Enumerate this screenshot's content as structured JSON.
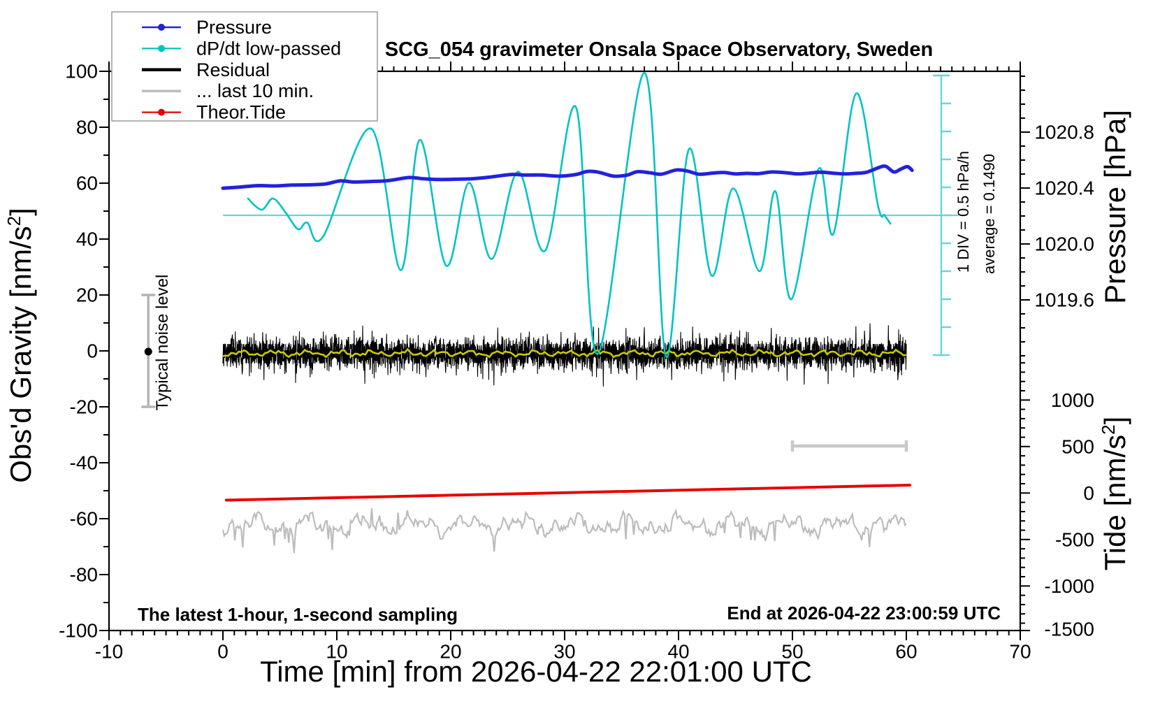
{
  "title": "SCG_054 gravimeter Onsala Space Observatory, Sweden",
  "colors": {
    "pressure": "#2222dd",
    "dpdt": "#00c3c3",
    "dpdt_ruler": "#66d6d6",
    "residual": "#000000",
    "last10": "#bcbcbc",
    "tide_red": "#e80000",
    "smooth_yellow": "#c9c900",
    "noise_bar": "#b4b4b4",
    "ten_min_bar": "#c8c8c8",
    "frame": "#000000"
  },
  "legend": {
    "items": [
      {
        "label": "Pressure",
        "color": "#2222dd",
        "marker": "dot",
        "width": 2.5
      },
      {
        "label": "dP/dt low-passed",
        "color": "#00c3c3",
        "marker": "dot",
        "width": 2.2
      },
      {
        "label": "Residual",
        "color": "#000000",
        "marker": "line",
        "width": 4.5
      },
      {
        "label": "... last 10 min.",
        "color": "#bcbcbc",
        "marker": "line",
        "width": 3.5
      },
      {
        "label": "Theor.Tide",
        "color": "#e80000",
        "marker": "dot",
        "width": 2.2
      }
    ]
  },
  "axes": {
    "x": {
      "title": "Time [min] from 2026-04-22 22:01:00 UTC",
      "min": -10,
      "max": 70,
      "major": 10,
      "minor": 1,
      "major_ticks": [
        -10,
        0,
        10,
        20,
        30,
        40,
        50,
        60,
        70
      ]
    },
    "gravity": {
      "title_main": "Obs'd Gravity [nm/s",
      "title_sup": "2",
      "title_close": "]",
      "min": -100,
      "max": 100,
      "major": 20,
      "minor": 10,
      "major_ticks": [
        100,
        80,
        60,
        40,
        20,
        0,
        -20,
        -40,
        -60,
        -80,
        -100
      ]
    },
    "pressure": {
      "title": "Pressure [hPa]",
      "tick_labels": [
        "1020.8",
        "1020.4",
        "1020.0",
        "1019.6"
      ],
      "tick_values": [
        1020.8,
        1020.4,
        1020.0,
        1019.6
      ],
      "minor_hpa": 0.1
    },
    "tide": {
      "title_main": "Tide [nm/s",
      "title_sup": "2",
      "title_close": "]",
      "tick_labels": [
        "1000",
        "500",
        "0",
        "-500",
        "-1000",
        "-1500"
      ],
      "tick_values": [
        1000,
        500,
        0,
        -500,
        -1000,
        -1500
      ],
      "minor": 100
    }
  },
  "annotations": {
    "sampling": "The latest 1-hour, 1-second sampling",
    "end_time": "End at 2026-04-22 23:00:59 UTC",
    "noise_label": "Typical noise level",
    "div_label": "1 DIV = 0.5 hPa/h",
    "average_label": "average = 0.1490"
  },
  "chart_data": {
    "type": "line",
    "x_unit": "minutes",
    "x_range": [
      -10,
      70
    ],
    "gravity_range": [
      -100,
      100
    ],
    "pressure_axis_ticks_hpa": [
      1020.8,
      1020.4,
      1020.0,
      1019.6
    ],
    "tide_axis_range": [
      -1500,
      1000
    ],
    "series": [
      {
        "name": "Pressure",
        "axis": "pressure",
        "unit": "hPa",
        "points": [
          [
            0,
            1020.399
          ],
          [
            1.5,
            1020.407
          ],
          [
            3,
            1020.417
          ],
          [
            4.5,
            1020.415
          ],
          [
            6,
            1020.421
          ],
          [
            7.5,
            1020.423
          ],
          [
            9,
            1020.429
          ],
          [
            10.3,
            1020.451
          ],
          [
            11.5,
            1020.443
          ],
          [
            13,
            1020.447
          ],
          [
            14.5,
            1020.453
          ],
          [
            16.3,
            1020.475
          ],
          [
            17.5,
            1020.467
          ],
          [
            19,
            1020.461
          ],
          [
            20.5,
            1020.463
          ],
          [
            22,
            1020.467
          ],
          [
            23.5,
            1020.479
          ],
          [
            25.3,
            1020.497
          ],
          [
            26.5,
            1020.493
          ],
          [
            28,
            1020.493
          ],
          [
            29.5,
            1020.485
          ],
          [
            31,
            1020.497
          ],
          [
            32,
            1020.519
          ],
          [
            33,
            1020.513
          ],
          [
            34.3,
            1020.485
          ],
          [
            35.5,
            1020.493
          ],
          [
            36.4,
            1020.517
          ],
          [
            37.5,
            1020.509
          ],
          [
            38.5,
            1020.499
          ],
          [
            39.8,
            1020.529
          ],
          [
            40.8,
            1020.521
          ],
          [
            41.8,
            1020.499
          ],
          [
            43,
            1020.507
          ],
          [
            44,
            1020.511
          ],
          [
            45,
            1020.501
          ],
          [
            46,
            1020.505
          ],
          [
            47,
            1020.503
          ],
          [
            48.2,
            1020.515
          ],
          [
            49.5,
            1020.509
          ],
          [
            50.5,
            1020.501
          ],
          [
            51.5,
            1020.507
          ],
          [
            52.5,
            1020.513
          ],
          [
            53.5,
            1020.507
          ],
          [
            54.5,
            1020.501
          ],
          [
            55.5,
            1020.505
          ],
          [
            56.5,
            1020.513
          ],
          [
            57.6,
            1020.547
          ],
          [
            58.2,
            1020.555
          ],
          [
            58.9,
            1020.515
          ],
          [
            59.5,
            1020.535
          ],
          [
            60.1,
            1020.553
          ],
          [
            60.5,
            1020.527
          ]
        ]
      },
      {
        "name": "dP/dt low-passed",
        "axis": "dpdt",
        "unit": "hPa/h",
        "div_hpa_per_h": 0.5,
        "average_hpa_per_h": 0.149,
        "zero_line_gravity_level": 48.5,
        "ruler_divisions": 10,
        "points": [
          [
            2.2,
            0.3
          ],
          [
            3.4,
            0.1
          ],
          [
            4.4,
            0.3
          ],
          [
            5.5,
            0.05
          ],
          [
            6.6,
            -0.25
          ],
          [
            7.4,
            -0.13
          ],
          [
            8.8,
            -0.38
          ],
          [
            13.0,
            1.55
          ],
          [
            15.6,
            -0.98
          ],
          [
            17.3,
            1.35
          ],
          [
            19.6,
            -0.9
          ],
          [
            21.6,
            0.58
          ],
          [
            23.6,
            -0.78
          ],
          [
            25.9,
            0.78
          ],
          [
            28.3,
            -0.63
          ],
          [
            31.0,
            1.93
          ],
          [
            32.9,
            -2.48
          ],
          [
            37.0,
            2.55
          ],
          [
            38.9,
            -2.53
          ],
          [
            40.9,
            1.18
          ],
          [
            42.9,
            -1.08
          ],
          [
            44.8,
            0.48
          ],
          [
            47.1,
            -1.0
          ],
          [
            48.5,
            0.43
          ],
          [
            49.9,
            -1.5
          ],
          [
            52.3,
            0.83
          ],
          [
            53.6,
            -0.33
          ],
          [
            55.6,
            2.18
          ],
          [
            57.5,
            0.18
          ],
          [
            58.1,
            0.0
          ],
          [
            58.6,
            -0.15
          ]
        ]
      },
      {
        "name": "Residual",
        "axis": "gravity",
        "unit": "nm/s2",
        "center": 0,
        "x_span": [
          0,
          60
        ],
        "noise": {
          "seed": 42,
          "n": 1600,
          "typical_nm": 5,
          "spike_nm": 13
        }
      },
      {
        "name": "... last 10 min.",
        "axis": "gravity",
        "unit": "nm/s2",
        "center": -62,
        "x_span": [
          0,
          60
        ],
        "noise": {
          "seed": 7,
          "n": 520,
          "typical_nm": 5,
          "spike_nm": 10
        }
      },
      {
        "name": "Residual smoothed",
        "axis": "gravity",
        "unit": "nm/s2",
        "center": -0.5,
        "x_span": [
          0,
          60
        ],
        "noise": {
          "seed": 11,
          "n": 260,
          "typical_nm": 1,
          "spike_nm": 1.5
        }
      },
      {
        "name": "Theor.Tide",
        "axis": "tide",
        "unit": "nm/s2",
        "points": [
          [
            0.3,
            -77
          ],
          [
            60.3,
            85
          ]
        ]
      }
    ],
    "markers": {
      "ten_min_bar": {
        "x_from_min": 50,
        "x_to_min": 60,
        "gravity_level": -34
      },
      "noise_bar": {
        "x_min": -6.55,
        "center_gravity": 0,
        "half_range_gravity": 20
      }
    }
  }
}
